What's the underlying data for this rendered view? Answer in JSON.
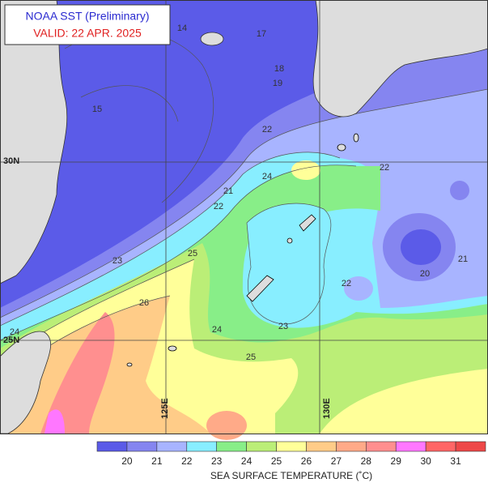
{
  "header": {
    "title": "NOAA SST (Preliminary)",
    "valid": "VALID: 22 APR. 2025"
  },
  "graticule": {
    "latitudes": [
      "30N",
      "25N"
    ],
    "longitudes": [
      "125E",
      "130E"
    ]
  },
  "contour_labels": [
    14,
    17,
    18,
    19,
    15,
    22,
    21,
    22,
    24,
    22,
    23,
    25,
    26,
    24,
    23,
    25,
    20,
    21,
    22,
    24
  ],
  "colorbar": {
    "labels": [
      20,
      21,
      22,
      23,
      24,
      25,
      26,
      27,
      28,
      29,
      30,
      31
    ],
    "colors": [
      "#5b5be8",
      "#8585f0",
      "#a8b4ff",
      "#88eeff",
      "#88ee88",
      "#bbee77",
      "#ffff99",
      "#ffcc88",
      "#ffaa88",
      "#ff8f8f",
      "#ff77ff",
      "#ff6666",
      "#ee4848"
    ],
    "title": "SEA SURFACE TEMPERATURE (˚C)"
  }
}
